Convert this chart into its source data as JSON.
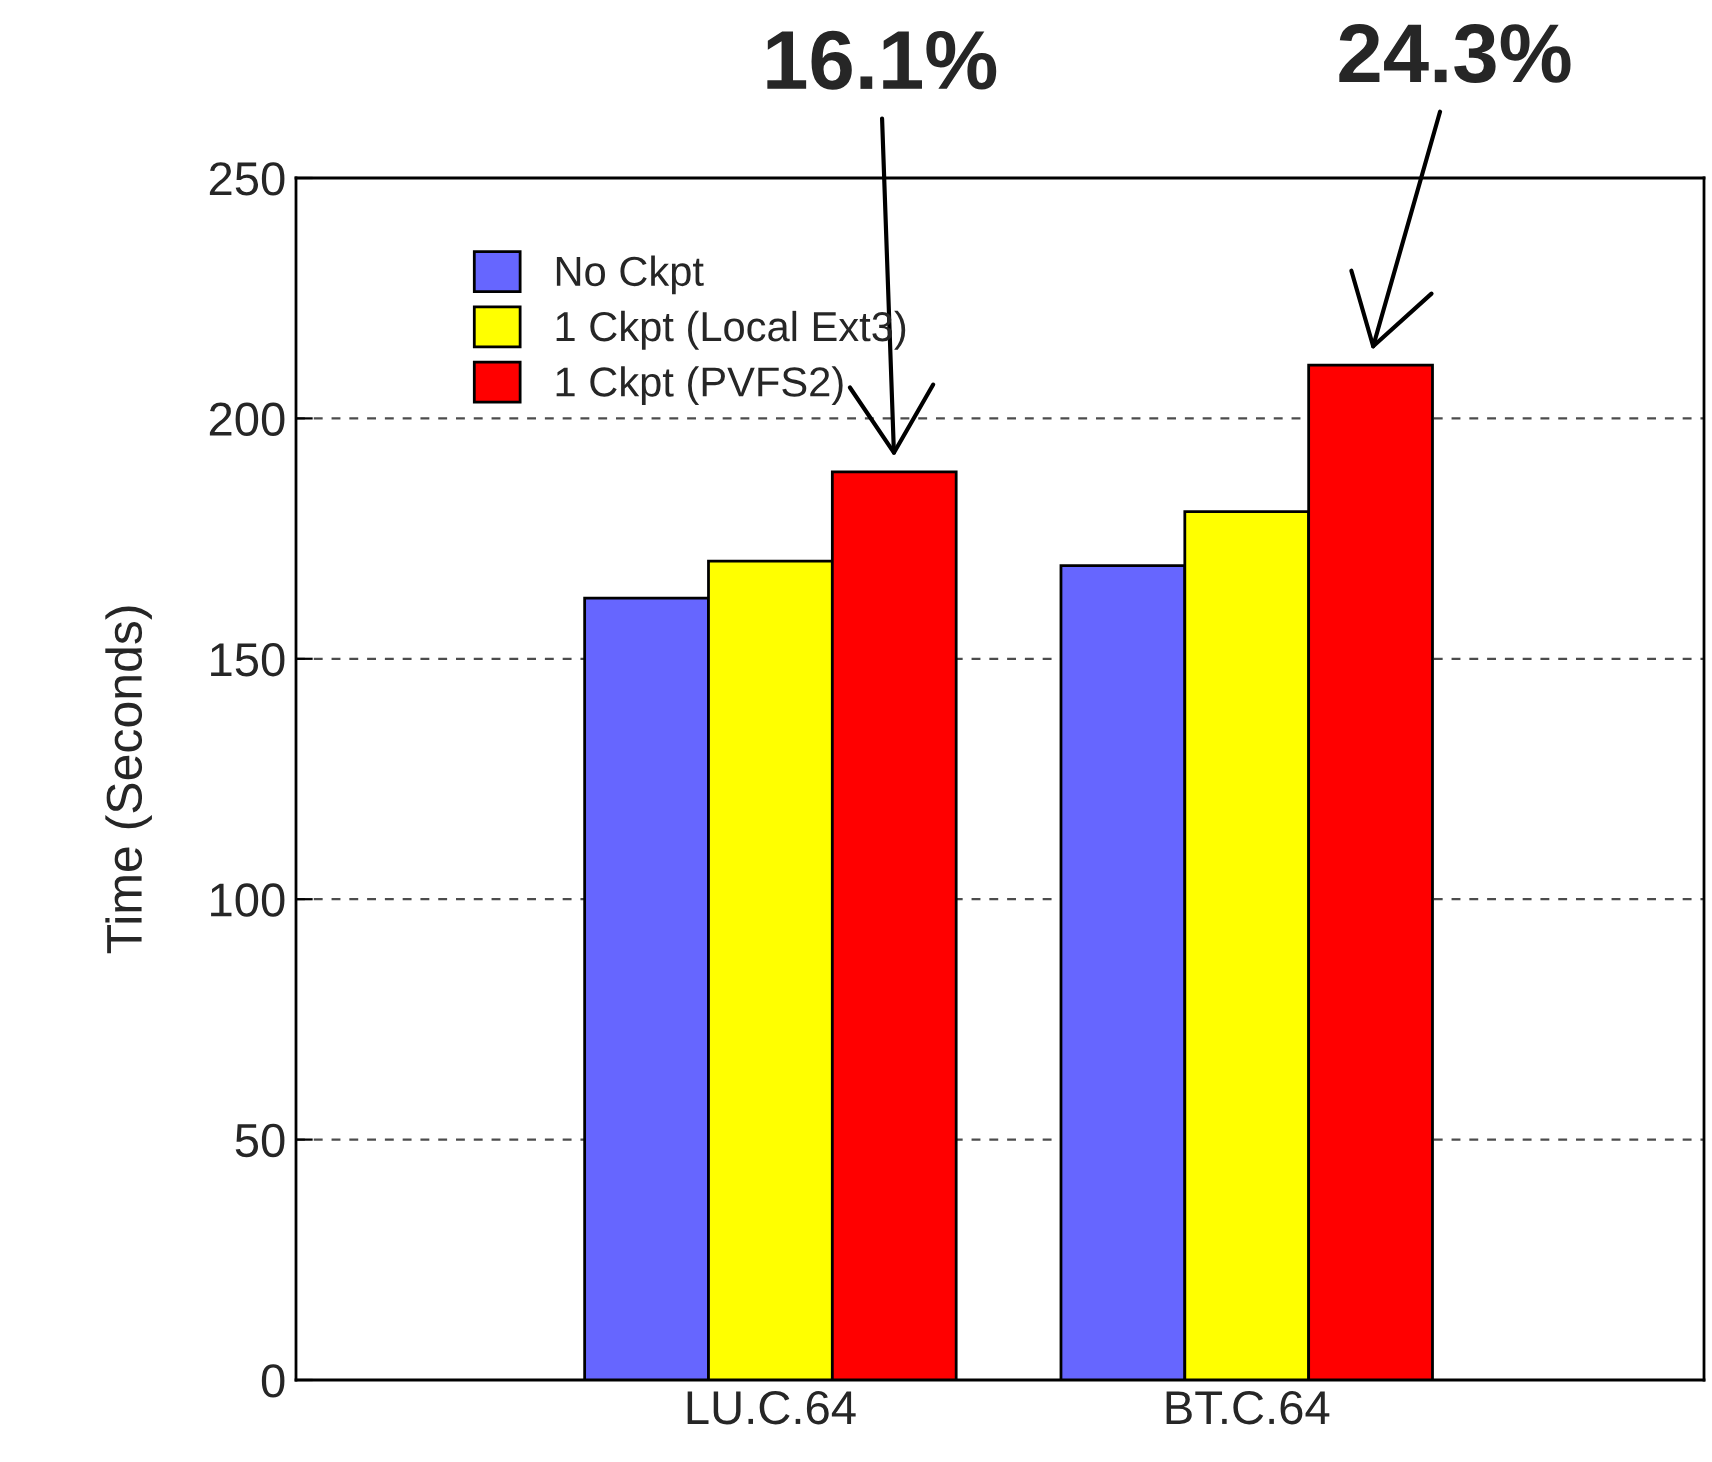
{
  "chart_data": {
    "type": "bar",
    "categories": [
      "LU.C.64",
      "BT.C.64"
    ],
    "ylabel": "Time (Seconds)",
    "ylim": [
      0,
      250
    ],
    "yticks": [
      0,
      50,
      100,
      150,
      200,
      250
    ],
    "grid": "y",
    "legend": "top left",
    "series": [
      {
        "name": "No Ckpt",
        "color": "#6666ff",
        "values": [
          162.6,
          169.4
        ]
      },
      {
        "name": "1 Ckpt (Local Ext3)",
        "color": "#ffff00",
        "values": [
          170.3,
          180.6
        ]
      },
      {
        "name": "1 Ckpt (PVFS2)",
        "color": "#ff0000",
        "values": [
          188.9,
          211.1
        ]
      }
    ],
    "annotations": [
      "16.1%",
      "24.3%"
    ]
  }
}
